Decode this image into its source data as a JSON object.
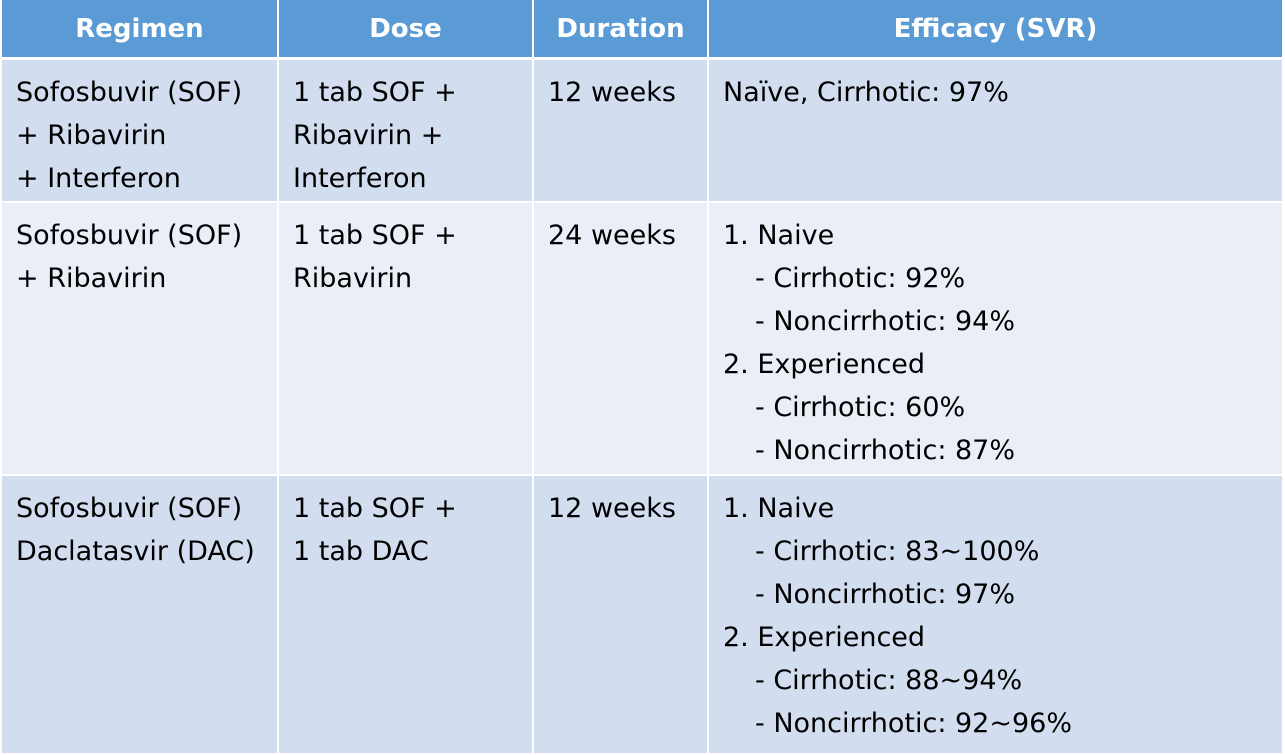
{
  "table": {
    "headers": [
      "Regimen",
      "Dose",
      "Duration",
      "Efficacy (SVR)"
    ],
    "rows": [
      {
        "regimen": [
          "Sofosbuvir (SOF)",
          "+ Ribavirin",
          "+ Interferon"
        ],
        "dose": [
          "1 tab SOF +",
          "Ribavirin +",
          "Interferon"
        ],
        "duration": "12 weeks",
        "efficacy": {
          "line1": "Naïve, Cirrhotic: 97%"
        }
      },
      {
        "regimen": [
          "Sofosbuvir (SOF)",
          "+ Ribavirin"
        ],
        "dose": [
          "1 tab SOF +",
          "Ribavirin"
        ],
        "duration": "24 weeks",
        "efficacy": {
          "group1": "1. Naive",
          "group1_a": "- Cirrhotic: 92%",
          "group1_b": "- Noncirrhotic: 94%",
          "group2": "2. Experienced",
          "group2_a": "- Cirrhotic: 60%",
          "group2_b": "- Noncirrhotic: 87%"
        }
      },
      {
        "regimen": [
          "Sofosbuvir (SOF)",
          "Daclatasvir (DAC)"
        ],
        "dose": [
          "1 tab SOF +",
          "1 tab DAC"
        ],
        "duration": "12 weeks",
        "efficacy": {
          "group1": "1. Naive",
          "group1_a": "- Cirrhotic: 83~100%",
          "group1_b": "- Noncirrhotic: 97%",
          "group2": "2. Experienced",
          "group2_a": "- Cirrhotic: 88~94%",
          "group2_b": "- Noncirrhotic: 92~96%"
        }
      }
    ]
  },
  "colors": {
    "header_bg": "#5b9bd5",
    "row_dark": "#d2deef",
    "row_light": "#eaeff7"
  }
}
